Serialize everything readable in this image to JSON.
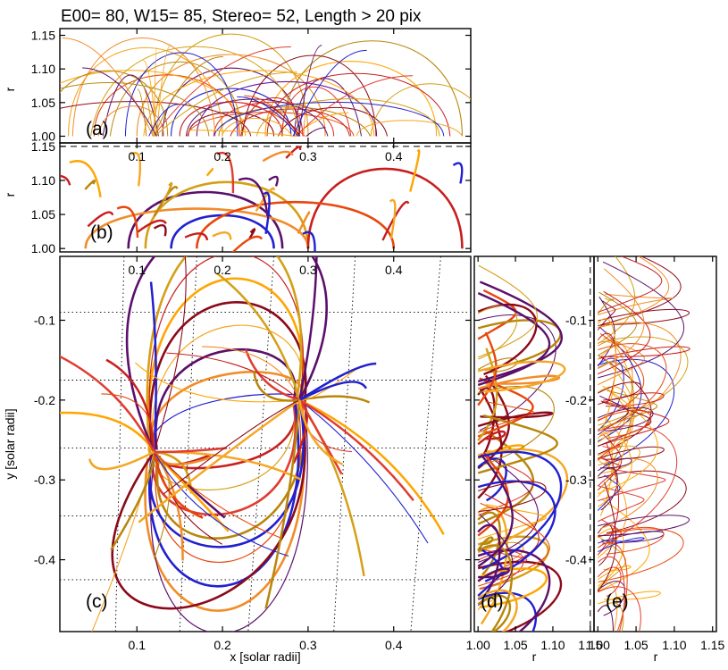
{
  "title": "E00= 80, W15= 85, Stereo= 52, Length > 20 pix",
  "chart_data": [
    {
      "panel": "(a)",
      "type": "line",
      "xlabel": "",
      "ylabel": "r",
      "xlim": [
        0.01,
        0.49
      ],
      "ylim": [
        0.99,
        1.16
      ],
      "yticks": [
        "1.00",
        "1.05",
        "1.10",
        "1.15"
      ],
      "loops": [
        {
          "x1": 0.12,
          "x2": 0.3,
          "h": 0.15,
          "color": "#d4a017"
        },
        {
          "x1": 0.1,
          "x2": 0.32,
          "h": 0.12,
          "color": "#f28c28"
        },
        {
          "x1": 0.13,
          "x2": 0.29,
          "h": 0.1,
          "color": "#5b0f6b"
        },
        {
          "x1": 0.14,
          "x2": 0.28,
          "h": 0.07,
          "color": "#2020d0"
        },
        {
          "x1": 0.15,
          "x2": 0.27,
          "h": 0.05,
          "color": "#c81e1e"
        },
        {
          "x1": 0.16,
          "x2": 0.26,
          "h": 0.035,
          "color": "#8b0a1a"
        },
        {
          "x1": 0.02,
          "x2": 0.2,
          "h": 0.13,
          "color": "#f5a623"
        },
        {
          "x1": 0.05,
          "x2": 0.22,
          "h": 0.09,
          "color": "#e8460c"
        },
        {
          "x1": 0.25,
          "x2": 0.45,
          "h": 0.11,
          "color": "#ffa500"
        },
        {
          "x1": 0.27,
          "x2": 0.48,
          "h": 0.14,
          "color": "#b8860b"
        },
        {
          "x1": 0.17,
          "x2": 0.38,
          "h": 0.08,
          "color": "#6a1b9a"
        },
        {
          "x1": 0.19,
          "x2": 0.33,
          "h": 0.05,
          "color": "#e03c31"
        }
      ]
    },
    {
      "panel": "(b)",
      "type": "line",
      "xlabel": "",
      "ylabel": "r",
      "xlim": [
        0.01,
        0.49
      ],
      "ylim": [
        0.995,
        1.155
      ],
      "yticks": [
        "1.00",
        "1.05",
        "1.10",
        "1.15"
      ],
      "top_xticks": [
        "0.1",
        "0.2",
        "0.3",
        "0.4"
      ],
      "loops": [
        {
          "x1": 0.09,
          "x2": 0.27,
          "h": 0.085,
          "color": "#5b0f6b"
        },
        {
          "x1": 0.11,
          "x2": 0.3,
          "h": 0.1,
          "color": "#d4a017"
        },
        {
          "x1": 0.14,
          "x2": 0.26,
          "h": 0.05,
          "color": "#2020d0"
        },
        {
          "x1": 0.04,
          "x2": 0.3,
          "h": 0.06,
          "color": "#f28c28"
        },
        {
          "x1": 0.3,
          "x2": 0.48,
          "h": 0.12,
          "color": "#c81e1e"
        },
        {
          "x1": 0.17,
          "x2": 0.4,
          "h": 0.07,
          "color": "#e8460c"
        }
      ]
    },
    {
      "panel": "(c)",
      "type": "line",
      "xlabel": "x [solar radii]",
      "ylabel": "y [solar radii]",
      "xlim": [
        0.01,
        0.49
      ],
      "ylim": [
        -0.49,
        -0.02
      ],
      "xticks": [
        "0.1",
        "0.2",
        "0.3",
        "0.4"
      ],
      "yticks": [
        "-0.1",
        "-0.2",
        "-0.3",
        "-0.4"
      ],
      "top_xticks": [
        "0.1",
        "0.2",
        "0.3",
        "0.4"
      ],
      "footpoints": {
        "negative": [
          0.12,
          -0.265
        ],
        "positive": [
          0.29,
          -0.2
        ]
      }
    },
    {
      "panel": "(d)",
      "type": "line",
      "xlabel": "r",
      "ylabel": "",
      "xlim": [
        0.995,
        1.155
      ],
      "ylim": [
        -0.49,
        -0.02
      ],
      "xticks": [
        "1.00",
        "1.05",
        "1.10",
        "1.15"
      ],
      "yticks": [
        "-0.1",
        "-0.2",
        "-0.3",
        "-0.4"
      ]
    },
    {
      "panel": "(e)",
      "type": "line",
      "xlabel": "r",
      "ylabel": "",
      "xlim": [
        0.995,
        1.155
      ],
      "ylim": [
        -0.49,
        -0.02
      ],
      "xticks": [
        "1.00",
        "1.05",
        "1.10",
        "1.15"
      ]
    }
  ],
  "colors": {
    "palette": [
      "#2020d0",
      "#5b0f6b",
      "#8b0a1a",
      "#c81e1e",
      "#e03c31",
      "#e8460c",
      "#f28c28",
      "#f5a623",
      "#ffa500",
      "#d4a017",
      "#b8860b"
    ]
  }
}
